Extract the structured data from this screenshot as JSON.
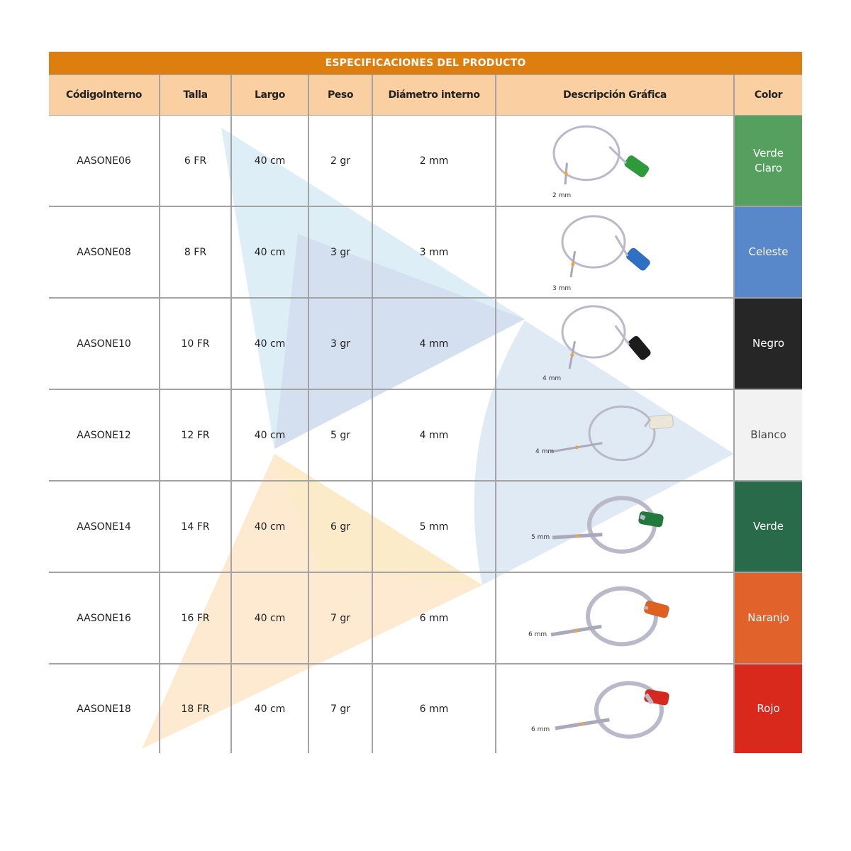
{
  "table": {
    "title": "ESPECIFICACIONES DEL PRODUCTO",
    "headers": {
      "codigo": "CódigoInterno",
      "talla": "Talla",
      "largo": "Largo",
      "peso": "Peso",
      "diametro": "Diámetro interno",
      "descripcion": "Descripción Gráfica",
      "color": "Color"
    },
    "rows": [
      {
        "codigo": "AASONE06",
        "talla": "6 FR",
        "largo": "40 cm",
        "peso": "2 gr",
        "diametro": "2 mm",
        "diagram_label": "2 mm",
        "color_name": "Verde Claro",
        "color_hex": "#56a05f",
        "connector_hex": "#2d9b3a",
        "text_hex": "#ffffff"
      },
      {
        "codigo": "AASONE08",
        "talla": "8 FR",
        "largo": "40 cm",
        "peso": "3 gr",
        "diametro": "3 mm",
        "diagram_label": "3 mm",
        "color_name": "Celeste",
        "color_hex": "#5888c9",
        "connector_hex": "#2f6fc4",
        "text_hex": "#ffffff"
      },
      {
        "codigo": "AASONE10",
        "talla": "10 FR",
        "largo": "40 cm",
        "peso": "3 gr",
        "diametro": "4 mm",
        "diagram_label": "4 mm",
        "color_name": "Negro",
        "color_hex": "#262626",
        "connector_hex": "#1c1c1c",
        "text_hex": "#ffffff"
      },
      {
        "codigo": "AASONE12",
        "talla": "12 FR",
        "largo": "40 cm",
        "peso": "5 gr",
        "diametro": "4 mm",
        "diagram_label": "4 mm",
        "color_name": "Blanco",
        "color_hex": "#f2f2f2",
        "connector_hex": "#ebe6d8",
        "text_hex": "#444444"
      },
      {
        "codigo": "AASONE14",
        "talla": "14 FR",
        "largo": "40 cm",
        "peso": "6 gr",
        "diametro": "5 mm",
        "diagram_label": "5 mm",
        "color_name": "Verde",
        "color_hex": "#286a4a",
        "connector_hex": "#1f7a3c",
        "text_hex": "#ffffff"
      },
      {
        "codigo": "AASONE16",
        "talla": "16 FR",
        "largo": "40 cm",
        "peso": "7 gr",
        "diametro": "6 mm",
        "diagram_label": "6 mm",
        "color_name": "Naranjo",
        "color_hex": "#e2622c",
        "connector_hex": "#e0611f",
        "text_hex": "#ffffff"
      },
      {
        "codigo": "AASONE18",
        "talla": "18 FR",
        "largo": "40 cm",
        "peso": "7 gr",
        "diametro": "6 mm",
        "diagram_label": "6 mm",
        "color_name": "Rojo",
        "color_hex": "#d9281c",
        "connector_hex": "#d6281f",
        "text_hex": "#ffffff"
      }
    ]
  },
  "watermark": {
    "colors": {
      "light_blue": "#d3e8f4",
      "blue": "#d6e3f1",
      "lavender": "#c8cbe6",
      "peach": "#fcdcb3",
      "yellow": "#fcecc0"
    }
  }
}
